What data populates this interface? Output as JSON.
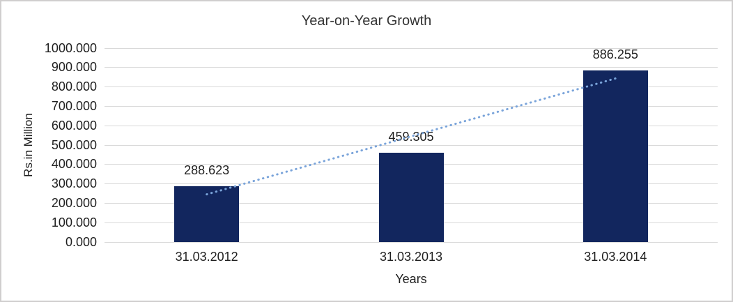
{
  "chart_data": {
    "type": "bar",
    "title": "Year-on-Year Growth",
    "xlabel": "Years",
    "ylabel": "Rs.in Million",
    "categories": [
      "31.03.2012",
      "31.03.2013",
      "31.03.2014"
    ],
    "values": [
      288.623,
      459.305,
      886.255
    ],
    "data_labels": [
      "288.623",
      "459.305",
      "886.255"
    ],
    "ylim": [
      0,
      1000
    ],
    "ytick_step": 100,
    "ytick_labels": [
      "0.000",
      "100.000",
      "200.000",
      "300.000",
      "400.000",
      "500.000",
      "600.000",
      "700.000",
      "800.000",
      "900.000",
      "1000.000"
    ],
    "grid": true,
    "legend": "none",
    "trendline": {
      "type": "linear",
      "style": "dotted",
      "color": "#7AA4DA"
    },
    "colors": {
      "bar": "#12265E",
      "gridline": "#D9D9D9",
      "axis_line": "#D9D9D9",
      "text": "#1F1F1F",
      "title": "#333333",
      "border": "#D0CECE",
      "background": "#FFFFFF"
    }
  }
}
